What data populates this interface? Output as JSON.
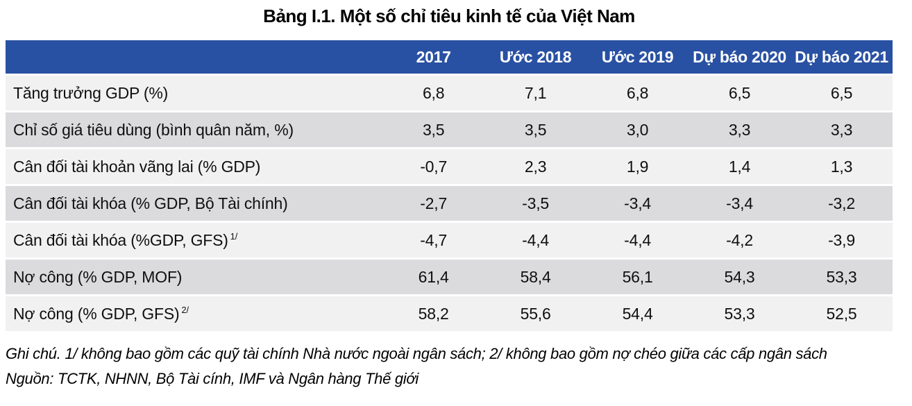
{
  "title": "Bảng I.1. Một số chỉ tiêu kinh tế của Việt Nam",
  "table": {
    "columns": [
      "2017",
      "Ước 2018",
      "Ước 2019",
      "Dự báo 2020",
      "Dự báo 2021"
    ],
    "rows": [
      {
        "label": "Tăng trưởng GDP (%)",
        "sup": "",
        "values": [
          "6,8",
          "7,1",
          "6,8",
          "6,5",
          "6,5"
        ]
      },
      {
        "label": "Chỉ số giá tiêu dùng (bình quân năm, %)",
        "sup": "",
        "values": [
          "3,5",
          "3,5",
          "3,0",
          "3,3",
          "3,3"
        ]
      },
      {
        "label": "Cân đối tài khoản vãng lai (% GDP)",
        "sup": "",
        "values": [
          "-0,7",
          "2,3",
          "1,9",
          "1,4",
          "1,3"
        ]
      },
      {
        "label": "Cân đối tài khóa (% GDP, Bộ Tài chính)",
        "sup": "",
        "values": [
          "-2,7",
          "-3,5",
          "-3,4",
          "-3,4",
          "-3,2"
        ]
      },
      {
        "label": "Cân đối tài khóa (%GDP, GFS)",
        "sup": "1/",
        "values": [
          "-4,7",
          "-4,4",
          "-4,4",
          "-4,2",
          "-3,9"
        ]
      },
      {
        "label": "Nợ công (% GDP, MOF)",
        "sup": "",
        "values": [
          "61,4",
          "58,4",
          "56,1",
          "54,3",
          "53,3"
        ]
      },
      {
        "label": "Nợ công (% GDP, GFS)",
        "sup": "2/",
        "values": [
          "58,2",
          "55,6",
          "54,4",
          "53,3",
          "52,5"
        ]
      }
    ]
  },
  "notes": {
    "line1": "Ghi chú. 1/ không bao gồm các quỹ tài chính Nhà nước ngoài ngân sách; 2/ không bao gồm nợ chéo giữa các cấp ngân sách",
    "line2": "Nguồn: TCTK, NHNN, Bộ Tài cính, IMF và Ngân hàng Thế giới"
  },
  "colors": {
    "header_bg": "#2951A3",
    "row_light": "#F1F1F2",
    "row_dark": "#DBDBDE",
    "header_text": "#FFFFFF",
    "text": "#0F0F0F"
  }
}
